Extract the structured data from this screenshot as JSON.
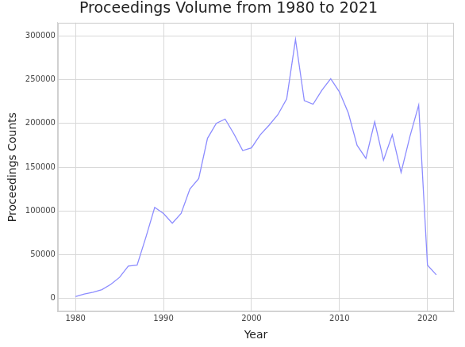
{
  "chart_data": {
    "type": "line",
    "title": "Proceedings Volume from 1980 to 2021",
    "x_label": "Year",
    "y_label": "Proceedings Counts",
    "x": [
      1980,
      1981,
      1982,
      1983,
      1984,
      1985,
      1986,
      1987,
      1988,
      1989,
      1990,
      1991,
      1992,
      1993,
      1994,
      1995,
      1996,
      1997,
      1998,
      1999,
      2000,
      2001,
      2002,
      2003,
      2004,
      2005,
      2006,
      2007,
      2008,
      2009,
      2010,
      2011,
      2012,
      2013,
      2014,
      2015,
      2016,
      2017,
      2018,
      2019,
      2020,
      2021
    ],
    "values": [
      2000,
      5000,
      7000,
      10000,
      16000,
      24000,
      37000,
      38000,
      70000,
      104000,
      97000,
      86000,
      97000,
      125000,
      137000,
      183000,
      200000,
      205000,
      188000,
      169000,
      172000,
      187000,
      198000,
      210000,
      228000,
      296000,
      226000,
      222000,
      238000,
      251000,
      236000,
      212000,
      175000,
      160000,
      202000,
      158000,
      187000,
      144000,
      185000,
      221000,
      38000,
      27000
    ],
    "color": "#8c8cff",
    "xlim": [
      1978,
      2023
    ],
    "xticks": [
      1980,
      1990,
      2000,
      2010,
      2020
    ],
    "ylim": [
      -15000,
      315000
    ],
    "yticks": [
      0,
      50000,
      100000,
      150000,
      200000,
      250000,
      300000
    ],
    "grid": true
  }
}
